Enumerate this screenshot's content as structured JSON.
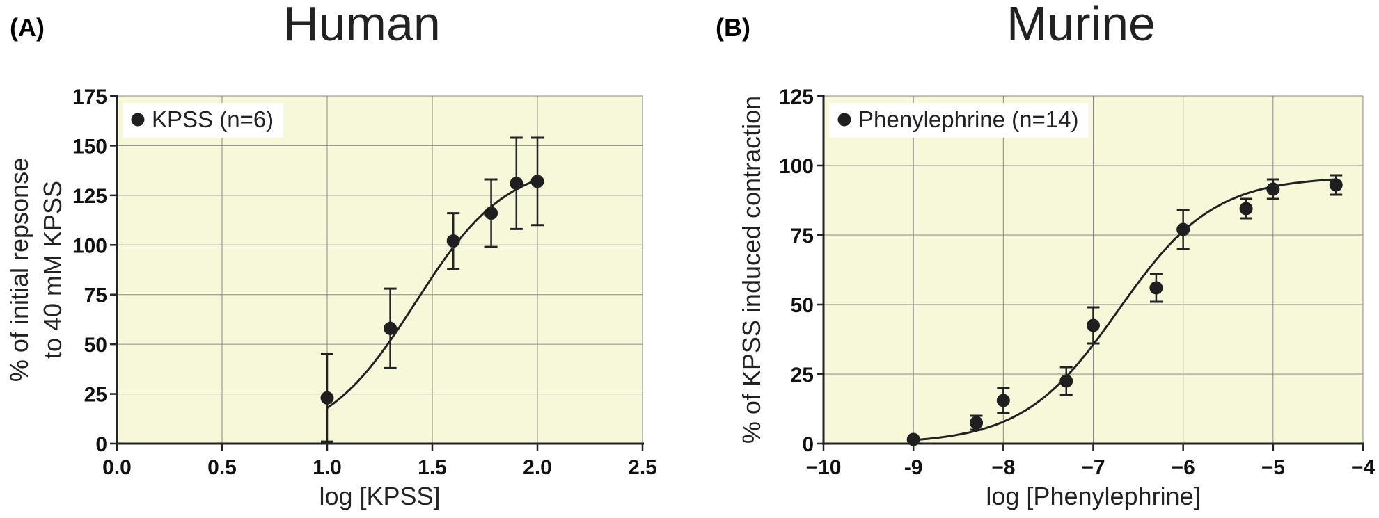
{
  "chart_data": [
    {
      "type": "scatter",
      "panel_label": "(A)",
      "title": "Human",
      "xlabel": "log [KPSS]",
      "ylabel_lines": [
        "% of initial repsonse",
        "to 40 mM KPSS"
      ],
      "xlim": [
        0.0,
        2.5
      ],
      "ylim": [
        0,
        175
      ],
      "x_ticks": [
        0.0,
        0.5,
        1.0,
        1.5,
        2.0,
        2.5
      ],
      "x_tick_labels": [
        "0.0",
        "0.5",
        "1.0",
        "1.5",
        "2.0",
        "2.5"
      ],
      "y_ticks": [
        0,
        25,
        50,
        75,
        100,
        125,
        150,
        175
      ],
      "y_tick_labels": [
        "0",
        "25",
        "50",
        "75",
        "100",
        "125",
        "150",
        "175"
      ],
      "grid": true,
      "legend_position": "top-left",
      "series": [
        {
          "name": "KPSS (n=6)",
          "x": [
            1.0,
            1.3,
            1.6,
            1.78,
            1.9,
            2.0
          ],
          "y": [
            23,
            58,
            102,
            116,
            131,
            132
          ],
          "err": [
            22,
            20,
            14,
            17,
            23,
            22
          ],
          "fit": {
            "bottom": 0,
            "top": 142,
            "logEC50": 1.42,
            "hill": 2.0,
            "range": [
              1.0,
              2.0
            ]
          }
        }
      ],
      "colors": {
        "plot_bg": "#f7f7d9",
        "marker": "#1f1f1f",
        "grid": "#888888"
      }
    },
    {
      "type": "scatter",
      "panel_label": "(B)",
      "title": "Murine",
      "xlabel": "log [Phenylephrine]",
      "ylabel_lines": [
        "% of KPSS induced contraction"
      ],
      "xlim": [
        -10,
        -4
      ],
      "ylim": [
        0,
        125
      ],
      "x_ticks": [
        -10,
        -9,
        -8,
        -7,
        -6,
        -5,
        -4
      ],
      "x_tick_labels": [
        "−10",
        "-9",
        "−8",
        "−7",
        "−6",
        "−5",
        "−4"
      ],
      "y_ticks": [
        0,
        25,
        50,
        75,
        100,
        125
      ],
      "y_tick_labels": [
        "0",
        "25",
        "50",
        "75",
        "100",
        "125"
      ],
      "grid": true,
      "legend_position": "top-left",
      "series": [
        {
          "name": "Phenylephrine (n=14)",
          "x": [
            -9.0,
            -8.3,
            -8.0,
            -7.3,
            -7.0,
            -6.3,
            -6.0,
            -5.3,
            -5.0,
            -4.3
          ],
          "y": [
            1.5,
            7.5,
            15.5,
            22.5,
            42.5,
            56,
            77,
            84.5,
            91.5,
            93
          ],
          "err": [
            0,
            2.5,
            4.5,
            5,
            6.5,
            5,
            7,
            3.5,
            3.5,
            3.5
          ],
          "fit": {
            "bottom": 0,
            "top": 96,
            "logEC50": -6.72,
            "hill": 0.82,
            "range": [
              -9.0,
              -4.3
            ]
          }
        }
      ],
      "colors": {
        "plot_bg": "#f7f7d9",
        "marker": "#1f1f1f",
        "grid": "#888888"
      }
    }
  ]
}
